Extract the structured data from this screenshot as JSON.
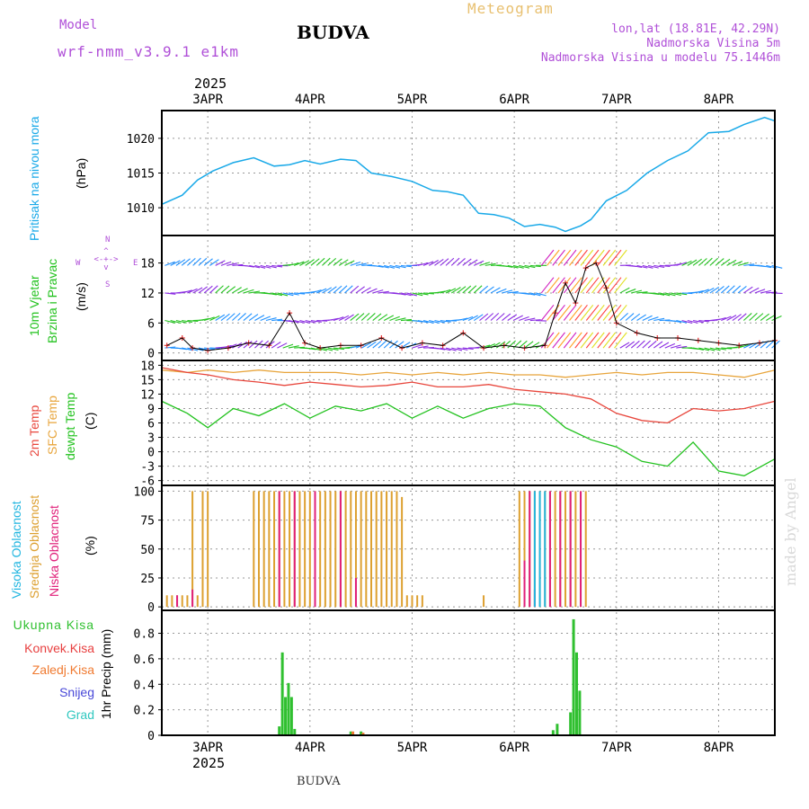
{
  "header": {
    "model_label": "Model",
    "model_name": "wrf-nmm_v3.9.1 e1km",
    "station": "BUDVA",
    "product": "Meteogram",
    "lonlat": "lon,lat (18.81E, 42.29N)",
    "elevation": "Nadmorska Visina 5m",
    "model_elevation": "Nadmorska Visina u modelu 75.1446m",
    "bottom_station": "BUDVA",
    "watermark": "made by Angel",
    "year_top": "2025",
    "year_bottom": "2025"
  },
  "colors": {
    "pressure": "#19a9e8",
    "temp2m": "#e8463c",
    "sfc_temp": "#e8a53c",
    "dewpt": "#22c21e",
    "cloud_high": "#22b6e0",
    "cloud_mid": "#dda030",
    "cloud_low": "#e0207a",
    "precip_total": "#30c030",
    "precip_conv": "#e84040",
    "precip_frozen": "#f07a30",
    "precip_snow": "#4848d8",
    "precip_hail": "#30c8c0",
    "wind_purple": "#8a2be2",
    "violet_text": "#b050d8"
  },
  "chart_data": [
    {
      "type": "line",
      "panel": "pressure",
      "title": "Pritisak na nivou mora",
      "ylabel": "(hPa)",
      "x_labels": [
        "3APR",
        "4APR",
        "5APR",
        "6APR",
        "7APR",
        "8APR"
      ],
      "x_range_days": [
        2.55,
        8.55
      ],
      "ylim": [
        1006,
        1024
      ],
      "yticks": [
        1010,
        1015,
        1020
      ],
      "series": [
        {
          "name": "",
          "x": [
            2.55,
            2.75,
            2.9,
            3.05,
            3.25,
            3.45,
            3.65,
            3.8,
            3.95,
            4.1,
            4.3,
            4.45,
            4.6,
            4.8,
            5.0,
            5.2,
            5.35,
            5.5,
            5.65,
            5.8,
            5.95,
            6.1,
            6.25,
            6.4,
            6.5,
            6.65,
            6.75,
            6.9,
            7.1,
            7.3,
            7.5,
            7.7,
            7.9,
            8.1,
            8.25,
            8.45,
            8.55
          ],
          "values": [
            1010.5,
            1011.8,
            1014.0,
            1015.3,
            1016.5,
            1017.2,
            1016.0,
            1016.2,
            1016.8,
            1016.3,
            1017.0,
            1016.8,
            1015.0,
            1014.5,
            1013.8,
            1012.5,
            1012.3,
            1011.8,
            1009.2,
            1009.0,
            1008.5,
            1007.3,
            1007.6,
            1007.2,
            1006.6,
            1007.4,
            1008.3,
            1011.0,
            1012.5,
            1015.0,
            1016.8,
            1018.2,
            1020.8,
            1021.0,
            1022.0,
            1023.0,
            1022.5
          ]
        }
      ]
    },
    {
      "type": "scatter",
      "panel": "wind",
      "title": "10m Vjetar",
      "subtitle": "Brzina i Pravac",
      "ylabel": "(m/s)",
      "compass": [
        "N",
        "S",
        "W",
        "E"
      ],
      "ylim": [
        -1.5,
        23.5
      ],
      "yticks": [
        0,
        6,
        12,
        18
      ],
      "series": [
        {
          "name": "",
          "x": [
            2.6,
            2.75,
            2.85,
            3.0,
            3.2,
            3.4,
            3.6,
            3.8,
            3.95,
            4.1,
            4.3,
            4.5,
            4.7,
            4.9,
            5.1,
            5.3,
            5.5,
            5.7,
            5.9,
            6.1,
            6.3,
            6.4,
            6.5,
            6.6,
            6.7,
            6.8,
            6.9,
            7.0,
            7.2,
            7.4,
            7.6,
            7.8,
            8.0,
            8.2,
            8.4,
            8.55
          ],
          "values": [
            1.5,
            3.0,
            1.0,
            0.5,
            1.0,
            2.0,
            1.5,
            8.0,
            2.0,
            1.0,
            1.5,
            1.5,
            3.0,
            1.0,
            2.0,
            1.5,
            4.0,
            1.0,
            1.5,
            1.0,
            1.5,
            8.0,
            14.0,
            10.0,
            17.0,
            18.0,
            13.0,
            6.0,
            4.0,
            3.0,
            3.0,
            2.5,
            2.0,
            1.5,
            2.0,
            2.5
          ]
        }
      ]
    },
    {
      "type": "line",
      "panel": "temperature",
      "labels": [
        "2m Temp",
        "SFC Temp",
        "dewpt Temp"
      ],
      "ylabel": "(C)",
      "ylim": [
        -7,
        19
      ],
      "yticks": [
        -6,
        -3,
        0,
        3,
        6,
        9,
        12,
        15,
        18
      ],
      "x": [
        2.55,
        2.8,
        3.0,
        3.25,
        3.5,
        3.75,
        4.0,
        4.25,
        4.5,
        4.75,
        5.0,
        5.25,
        5.5,
        5.75,
        6.0,
        6.25,
        6.5,
        6.75,
        7.0,
        7.25,
        7.5,
        7.75,
        8.0,
        8.25,
        8.55
      ],
      "series": [
        {
          "name": "2m Temp",
          "values": [
            17.5,
            16.5,
            16.0,
            15.0,
            14.5,
            13.8,
            14.5,
            14.0,
            13.5,
            13.8,
            14.5,
            13.5,
            13.5,
            14.0,
            13.0,
            12.5,
            12.0,
            11.0,
            8.0,
            6.5,
            6.0,
            9.0,
            8.5,
            9.0,
            10.5
          ]
        },
        {
          "name": "SFC Temp",
          "values": [
            17.0,
            16.5,
            17.0,
            16.5,
            17.0,
            16.5,
            16.5,
            16.5,
            16.0,
            16.5,
            16.0,
            16.5,
            16.0,
            16.5,
            16.0,
            16.0,
            15.5,
            16.0,
            16.5,
            16.0,
            16.5,
            16.5,
            16.0,
            15.5,
            17.0
          ]
        },
        {
          "name": "dewpt Temp",
          "values": [
            10.5,
            8.0,
            5.0,
            9.0,
            7.5,
            10.0,
            7.0,
            9.5,
            8.5,
            10.0,
            7.0,
            9.5,
            7.0,
            9.0,
            10.0,
            9.5,
            5.0,
            2.5,
            1.0,
            -2.0,
            -3.0,
            2.0,
            -4.0,
            -5.0,
            -1.5
          ]
        }
      ]
    },
    {
      "type": "bar",
      "panel": "clouds",
      "labels": [
        "Visoka Oblacnost",
        "Srednja Oblacnost",
        "Niska Oblacnost"
      ],
      "ylabel": "(%)",
      "ylim": [
        -3,
        105
      ],
      "yticks": [
        0,
        25,
        50,
        75,
        100
      ],
      "series": [
        {
          "name": "Srednja Oblacnost",
          "x": [
            2.6,
            2.65,
            2.7,
            2.75,
            2.8,
            2.85,
            2.9,
            2.95,
            3.0,
            3.45,
            3.5,
            3.55,
            3.6,
            3.65,
            3.7,
            3.75,
            3.8,
            3.85,
            3.9,
            3.95,
            4.0,
            4.05,
            4.1,
            4.15,
            4.2,
            4.25,
            4.3,
            4.35,
            4.4,
            4.45,
            4.5,
            4.55,
            4.6,
            4.65,
            4.7,
            4.75,
            4.8,
            4.85,
            4.9,
            4.95,
            5.0,
            5.05,
            5.1,
            5.7,
            6.05,
            6.1,
            6.15,
            6.2,
            6.25,
            6.3,
            6.35,
            6.4,
            6.45,
            6.5,
            6.55,
            6.6,
            6.65,
            6.7
          ],
          "values": [
            10,
            10,
            10,
            10,
            10,
            100,
            10,
            100,
            100,
            100,
            100,
            100,
            100,
            100,
            100,
            100,
            100,
            100,
            100,
            100,
            100,
            100,
            100,
            100,
            100,
            100,
            100,
            100,
            100,
            100,
            100,
            100,
            100,
            100,
            100,
            100,
            100,
            100,
            95,
            10,
            10,
            10,
            10,
            10,
            100,
            100,
            100,
            100,
            100,
            100,
            100,
            100,
            100,
            100,
            100,
            100,
            100,
            100
          ]
        },
        {
          "name": "Niska Oblacnost",
          "x": [
            2.7,
            2.85,
            3.7,
            3.85,
            4.05,
            4.3,
            4.45,
            6.1,
            6.15,
            6.2,
            6.35,
            6.45,
            6.55,
            6.65
          ],
          "values": [
            10,
            15,
            100,
            100,
            100,
            100,
            25,
            40,
            100,
            15,
            100,
            100,
            100,
            100
          ]
        },
        {
          "name": "Visoka Oblacnost",
          "x": [
            6.2,
            6.25,
            6.3
          ],
          "values": [
            100,
            100,
            100
          ]
        }
      ]
    },
    {
      "type": "bar",
      "panel": "precip",
      "labels": [
        "Ukupna Kisa",
        "Konvek.Kisa",
        "Zaledj.Kisa",
        "Snijeg",
        "Grad"
      ],
      "ylabel": "1hr Precip (mm)",
      "ylim": [
        0,
        0.98
      ],
      "yticks": [
        0,
        0.2,
        0.4,
        0.6,
        0.8
      ],
      "series": [
        {
          "name": "Ukupna Kisa",
          "x": [
            3.7,
            3.73,
            3.76,
            3.79,
            3.82,
            3.85,
            3.88,
            4.4,
            4.5,
            6.38,
            6.42,
            6.55,
            6.58,
            6.61,
            6.64,
            6.67
          ],
          "values": [
            0.07,
            0.65,
            0.3,
            0.41,
            0.3,
            0.05,
            0.0,
            0.03,
            0.03,
            0.04,
            0.09,
            0.18,
            0.91,
            0.65,
            0.35,
            0.0
          ]
        },
        {
          "name": "Zaledj.Kisa",
          "x": [
            4.42,
            4.52
          ],
          "values": [
            0.03,
            0.02
          ]
        }
      ]
    }
  ]
}
